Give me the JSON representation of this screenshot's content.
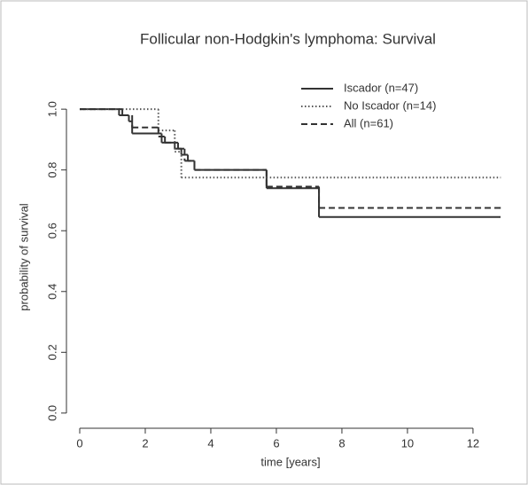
{
  "chart_data": {
    "type": "step",
    "title": "Follicular non-Hodgkin's lymphoma: Survival",
    "xlabel": "time [years]",
    "ylabel": "probability of survival",
    "xlim": [
      -0.27,
      12.84
    ],
    "ylim": [
      -0.05,
      1.05
    ],
    "xticks": [
      0,
      2,
      4,
      6,
      8,
      10,
      12
    ],
    "yticks": [
      {
        "value": 0,
        "label": "0.0"
      },
      {
        "value": 0.2,
        "label": "0.2"
      },
      {
        "value": 0.4,
        "label": "0.4"
      },
      {
        "value": 0.6,
        "label": "0.6"
      },
      {
        "value": 0.8,
        "label": "0.8"
      },
      {
        "value": 1,
        "label": "1.0"
      }
    ],
    "legend": "top-right",
    "series": [
      {
        "name": "Iscador (n=47)",
        "color": "#333333",
        "dash": "solid",
        "x": [
          0,
          1.2,
          1.5,
          1.6,
          2.5,
          2.9,
          3.1,
          3.3,
          3.5,
          5.7,
          7.3,
          12.84
        ],
        "values": [
          1.0,
          0.98,
          0.96,
          0.92,
          0.89,
          0.87,
          0.85,
          0.83,
          0.8,
          0.74,
          0.645,
          0.645
        ]
      },
      {
        "name": "No Iscador (n=14)",
        "color": "#555555",
        "dash": "dotted",
        "x": [
          0,
          2.4,
          2.9,
          3.1,
          12.84
        ],
        "values": [
          1.0,
          0.93,
          0.86,
          0.775,
          0.775
        ]
      },
      {
        "name": "All (n=61)",
        "color": "#333333",
        "dash": "dashed",
        "x": [
          0,
          1.3,
          1.6,
          2.4,
          2.6,
          3.0,
          3.2,
          3.5,
          5.7,
          7.3,
          12.84
        ],
        "values": [
          1.0,
          0.98,
          0.94,
          0.91,
          0.89,
          0.87,
          0.83,
          0.8,
          0.745,
          0.675,
          0.675
        ]
      }
    ]
  }
}
